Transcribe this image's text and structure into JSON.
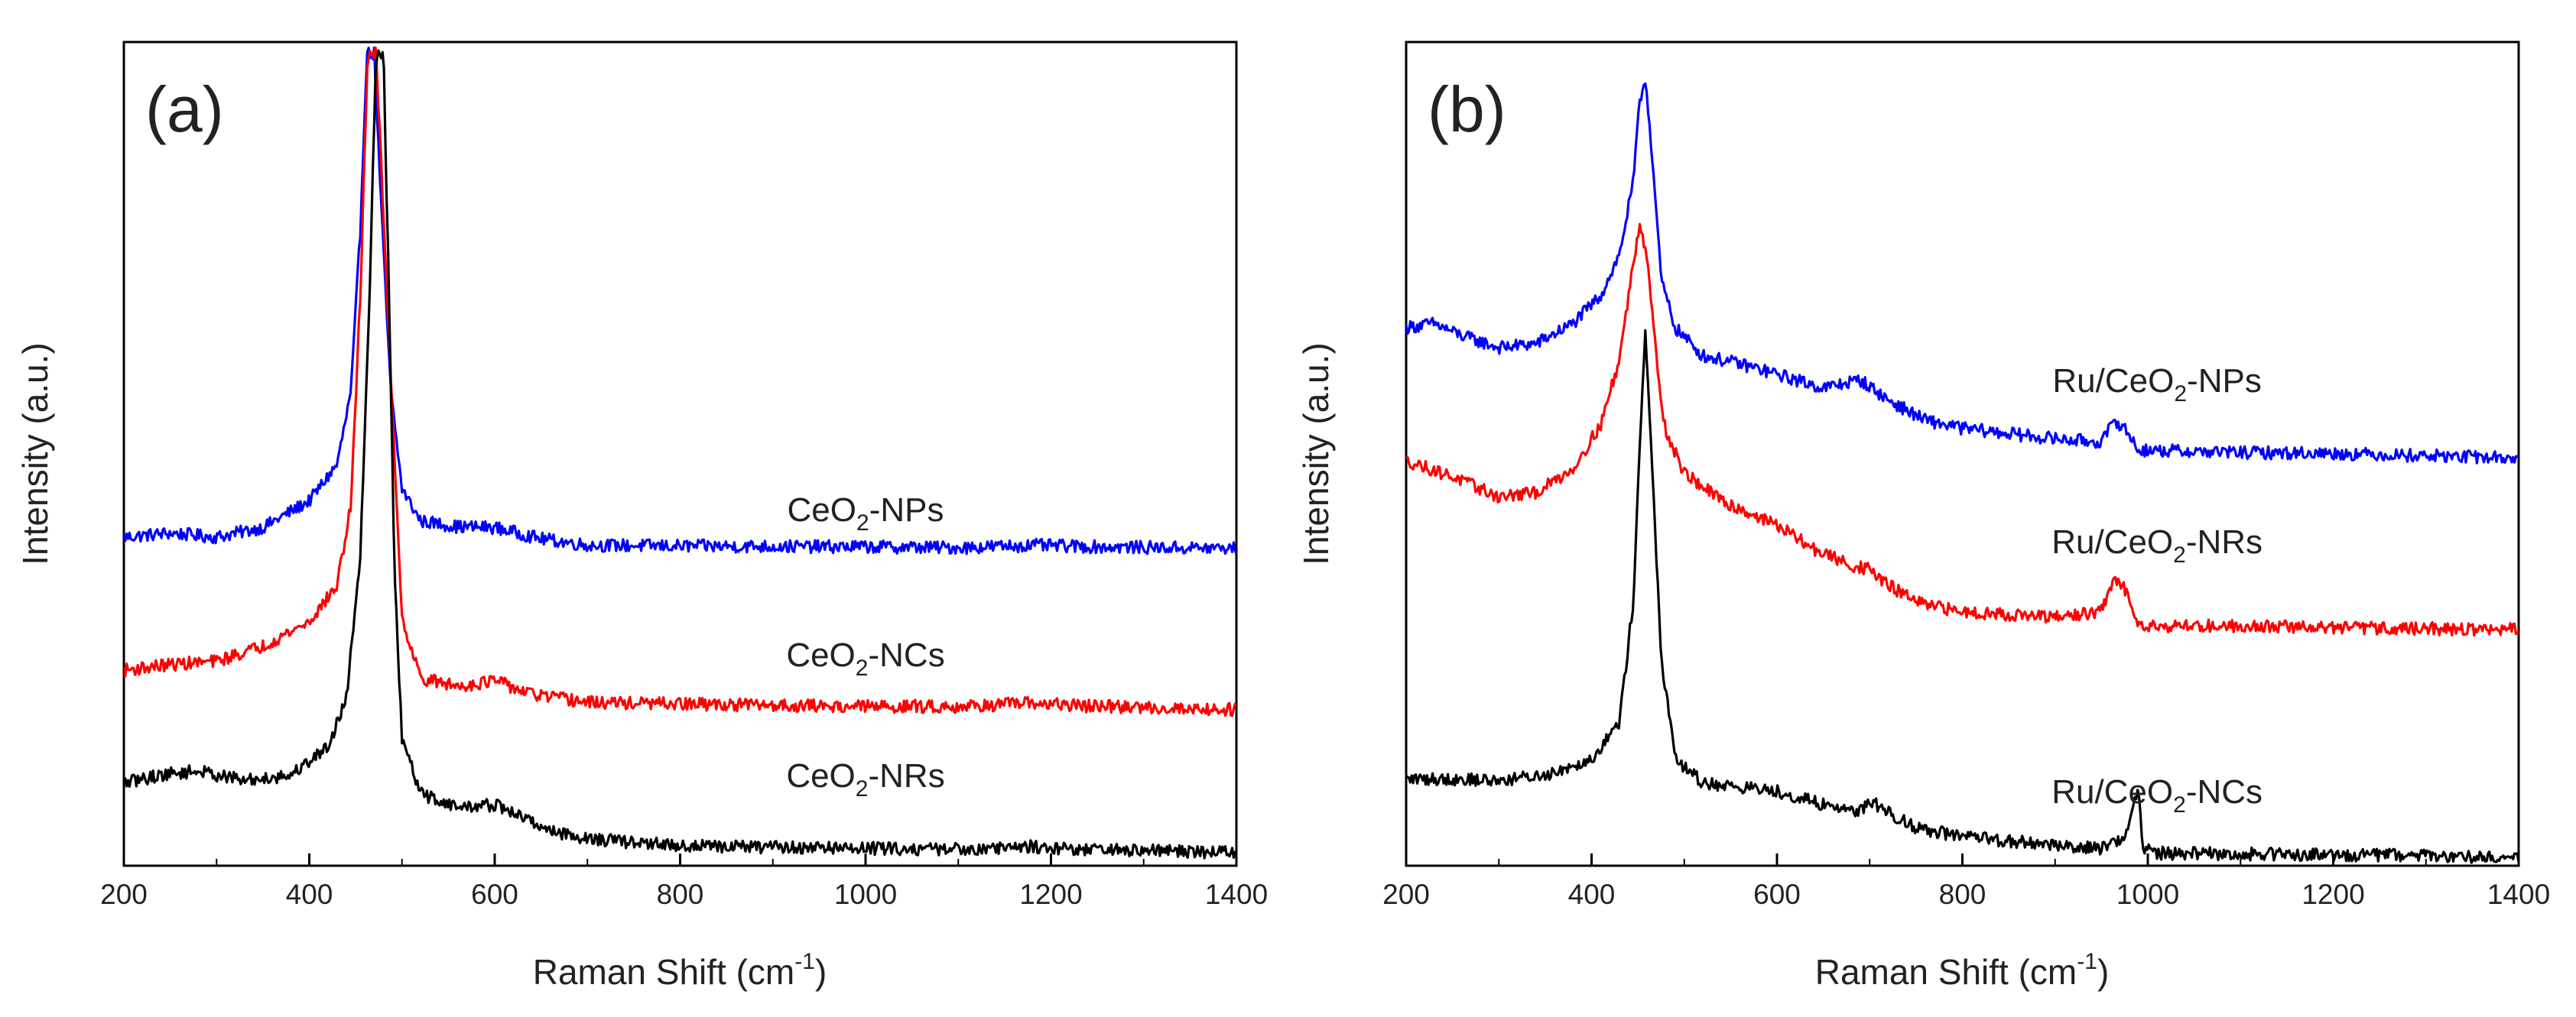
{
  "chart_data": [
    {
      "type": "line",
      "panel_label": "(a)",
      "xlabel": {
        "main": "Raman Shift (cm",
        "sup": "-1",
        "tail": ")"
      },
      "ylabel": "Intensity (a.u.)",
      "xlim": [
        200,
        1400
      ],
      "ylim": [
        0,
        100
      ],
      "x_ticks": [
        200,
        400,
        600,
        800,
        1000,
        1200,
        1400
      ],
      "y_ticks_visible": false,
      "series": [
        {
          "name": "CeO2-NPs",
          "label": {
            "pre": "CeO",
            "sub": "2",
            "post": "-NPs"
          },
          "color": "#0000ff",
          "label_at": [
            1000,
            42
          ],
          "points": [
            [
              200,
              40.0
            ],
            [
              250,
              40.5
            ],
            [
              300,
              40.0
            ],
            [
              350,
              41.2
            ],
            [
              400,
              44.5
            ],
            [
              430,
              49
            ],
            [
              445,
              58
            ],
            [
              455,
              78
            ],
            [
              462,
              100
            ],
            [
              470,
              100
            ],
            [
              478,
              80
            ],
            [
              488,
              58
            ],
            [
              500,
              46
            ],
            [
              520,
              42
            ],
            [
              560,
              41.3
            ],
            [
              600,
              41.2
            ],
            [
              650,
              39.8
            ],
            [
              700,
              39.0
            ],
            [
              800,
              38.9
            ],
            [
              1000,
              38.8
            ],
            [
              1100,
              38.7
            ],
            [
              1180,
              39.0
            ],
            [
              1250,
              38.8
            ],
            [
              1400,
              38.6
            ]
          ]
        },
        {
          "name": "CeO2-NCs",
          "label": {
            "pre": "CeO",
            "sub": "2",
            "post": "-NCs"
          },
          "color": "#ff0000",
          "label_at": [
            1000,
            24
          ],
          "points": [
            [
              200,
              23.5
            ],
            [
              250,
              24.2
            ],
            [
              300,
              24.6
            ],
            [
              350,
              26.5
            ],
            [
              400,
              29.5
            ],
            [
              430,
              34
            ],
            [
              445,
              44
            ],
            [
              455,
              70
            ],
            [
              463,
              100
            ],
            [
              472,
              100
            ],
            [
              480,
              80
            ],
            [
              490,
              55
            ],
            [
              500,
              30
            ],
            [
              520,
              22.5
            ],
            [
              560,
              21.5
            ],
            [
              600,
              22.2
            ],
            [
              640,
              20.5
            ],
            [
              700,
              19.5
            ],
            [
              800,
              19.3
            ],
            [
              1000,
              19.0
            ],
            [
              1100,
              19.0
            ],
            [
              1180,
              19.4
            ],
            [
              1250,
              19.0
            ],
            [
              1400,
              18.6
            ]
          ]
        },
        {
          "name": "CeO2-NRs",
          "label": {
            "pre": "CeO",
            "sub": "2",
            "post": "-NRs"
          },
          "color": "#000000",
          "label_at": [
            1000,
            9
          ],
          "points": [
            [
              200,
              9.5
            ],
            [
              240,
              10.5
            ],
            [
              280,
              11.0
            ],
            [
              330,
              9.8
            ],
            [
              380,
              10.5
            ],
            [
              420,
              14
            ],
            [
              440,
              20
            ],
            [
              455,
              38
            ],
            [
              465,
              70
            ],
            [
              472,
              100
            ],
            [
              480,
              100
            ],
            [
              486,
              70
            ],
            [
              492,
              35
            ],
            [
              500,
              15
            ],
            [
              520,
              8.2
            ],
            [
              560,
              6.5
            ],
            [
              600,
              6.8
            ],
            [
              620,
              5.8
            ],
            [
              660,
              3.6
            ],
            [
              700,
              2.6
            ],
            [
              800,
              1.7
            ],
            [
              1000,
              1.4
            ],
            [
              1100,
              1.3
            ],
            [
              1180,
              1.6
            ],
            [
              1250,
              1.2
            ],
            [
              1400,
              0.9
            ]
          ]
        }
      ]
    },
    {
      "type": "line",
      "panel_label": "(b)",
      "xlabel": {
        "main": "Raman Shift (cm",
        "sup": "-1",
        "tail": ")"
      },
      "ylabel": "Intensity (a.u.)",
      "xlim": [
        200,
        1400
      ],
      "ylim": [
        0,
        100
      ],
      "x_ticks": [
        200,
        400,
        600,
        800,
        1000,
        1200,
        1400
      ],
      "y_ticks_visible": false,
      "series": [
        {
          "name": "Ru/CeO2-NPs",
          "label": {
            "pre": "Ru/CeO",
            "sub": "2",
            "post": "-NPs"
          },
          "color": "#0000ff",
          "label_at": [
            1010,
            58
          ],
          "points": [
            [
              200,
              66.0
            ],
            [
              230,
              66.5
            ],
            [
              260,
              65.0
            ],
            [
              300,
              63.5
            ],
            [
              340,
              64.0
            ],
            [
              380,
              66.5
            ],
            [
              410,
              70
            ],
            [
              430,
              75
            ],
            [
              445,
              84
            ],
            [
              452,
              94
            ],
            [
              458,
              97
            ],
            [
              465,
              88
            ],
            [
              475,
              72
            ],
            [
              490,
              66
            ],
            [
              520,
              62.5
            ],
            [
              560,
              61.5
            ],
            [
              600,
              60.2
            ],
            [
              650,
              58.5
            ],
            [
              690,
              59.5
            ],
            [
              720,
              57.0
            ],
            [
              760,
              54.5
            ],
            [
              800,
              53.5
            ],
            [
              900,
              52.2
            ],
            [
              950,
              51.8
            ],
            [
              965,
              54.5
            ],
            [
              975,
              53.5
            ],
            [
              990,
              50.8
            ],
            [
              1100,
              50.5
            ],
            [
              1200,
              50.4
            ],
            [
              1400,
              49.8
            ]
          ]
        },
        {
          "name": "Ru/CeO2-NRs",
          "label": {
            "pre": "Ru/CeO",
            "sub": "2",
            "post": "-NRs"
          },
          "color": "#ff0000",
          "label_at": [
            1010,
            38
          ],
          "points": [
            [
              200,
              49.5
            ],
            [
              250,
              47.5
            ],
            [
              300,
              45.0
            ],
            [
              340,
              45.5
            ],
            [
              380,
              48.5
            ],
            [
              410,
              54
            ],
            [
              430,
              62
            ],
            [
              445,
              74
            ],
            [
              452,
              79
            ],
            [
              460,
              75
            ],
            [
              470,
              62
            ],
            [
              480,
              53
            ],
            [
              500,
              48
            ],
            [
              540,
              44.5
            ],
            [
              600,
              41.5
            ],
            [
              640,
              38.5
            ],
            [
              680,
              36.5
            ],
            [
              700,
              36.0
            ],
            [
              720,
              34.0
            ],
            [
              760,
              31.5
            ],
            [
              800,
              30.8
            ],
            [
              900,
              30.0
            ],
            [
              950,
              30.8
            ],
            [
              965,
              35.0
            ],
            [
              975,
              33.5
            ],
            [
              990,
              29.5
            ],
            [
              1000,
              29.0
            ],
            [
              1100,
              29.0
            ],
            [
              1200,
              28.8
            ],
            [
              1400,
              28.5
            ]
          ]
        },
        {
          "name": "Ru/CeO2-NCs",
          "label": {
            "pre": "Ru/CeO",
            "sub": "2",
            "post": "-NCs"
          },
          "color": "#000000",
          "label_at": [
            1010,
            7
          ],
          "points": [
            [
              200,
              10.0
            ],
            [
              250,
              10.0
            ],
            [
              300,
              9.8
            ],
            [
              350,
              10.5
            ],
            [
              400,
              12.5
            ],
            [
              430,
              17
            ],
            [
              445,
              32
            ],
            [
              452,
              52
            ],
            [
              458,
              65
            ],
            [
              465,
              50
            ],
            [
              475,
              25
            ],
            [
              490,
              12.5
            ],
            [
              520,
              9.5
            ],
            [
              560,
              9.0
            ],
            [
              600,
              8.5
            ],
            [
              650,
              6.8
            ],
            [
              690,
              6.0
            ],
            [
              700,
              7.5
            ],
            [
              710,
              6.5
            ],
            [
              750,
              4.0
            ],
            [
              800,
              2.8
            ],
            [
              900,
              1.8
            ],
            [
              950,
              1.4
            ],
            [
              975,
              2.8
            ],
            [
              985,
              7.0
            ],
            [
              990,
              8.5
            ],
            [
              995,
              1.5
            ],
            [
              1010,
              0.8
            ],
            [
              1100,
              0.7
            ],
            [
              1200,
              0.6
            ],
            [
              1300,
              0.5
            ],
            [
              1400,
              0.3
            ]
          ]
        }
      ]
    }
  ]
}
